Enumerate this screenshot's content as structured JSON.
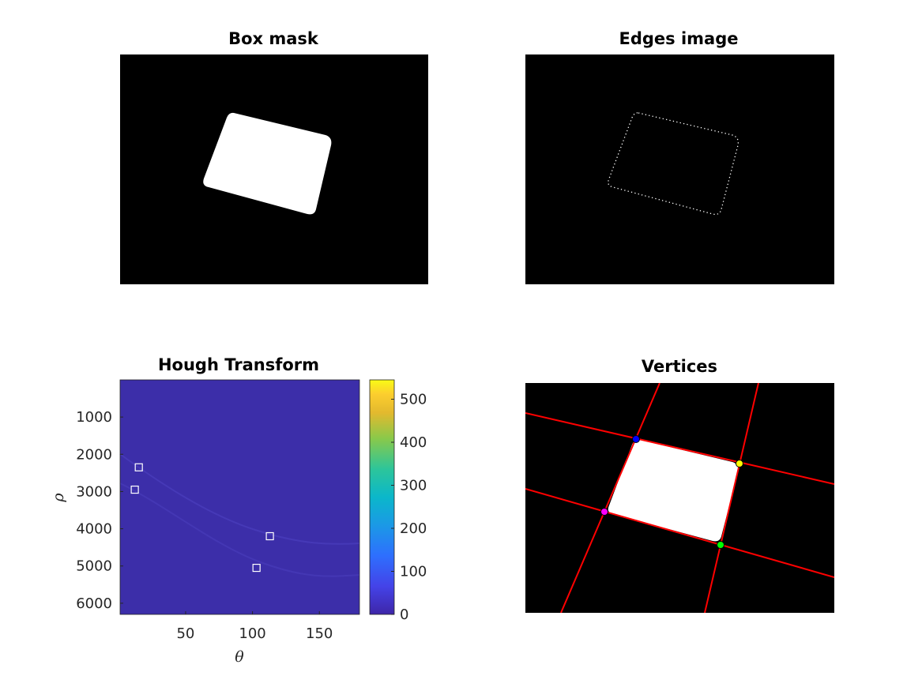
{
  "figure": {
    "panels": {
      "box_mask": {
        "title": "Box mask"
      },
      "edges_image": {
        "title": "Edges image"
      },
      "hough_transform": {
        "title": "Hough Transform"
      },
      "vertices": {
        "title": "Vertices"
      }
    }
  },
  "chart_data": [
    {
      "type": "image",
      "title": "Box mask",
      "description_colors": {
        "background": "#000000",
        "shape": "#ffffff"
      }
    },
    {
      "type": "image",
      "title": "Edges image",
      "description_colors": {
        "background": "#000000",
        "edges": "#ffffff"
      }
    },
    {
      "type": "heatmap",
      "title": "Hough Transform",
      "xlabel": "θ",
      "ylabel": "ρ",
      "xlim": [
        1,
        180
      ],
      "ylim": [
        6300,
        1
      ],
      "y_reversed": true,
      "xticks": [
        50,
        100,
        150
      ],
      "yticks": [
        1000,
        2000,
        3000,
        4000,
        5000,
        6000
      ],
      "colorbar": {
        "ticks": [
          0,
          100,
          200,
          300,
          400,
          500
        ],
        "lim": [
          0,
          545
        ],
        "colormap": "parula"
      },
      "peaks": [
        {
          "theta": 15,
          "rho": 2350
        },
        {
          "theta": 12,
          "rho": 2950
        },
        {
          "theta": 113,
          "rho": 4200
        },
        {
          "theta": 103,
          "rho": 5050
        }
      ],
      "colors": {
        "background": "#3c2ea9",
        "peak_marker": "#ffffff"
      }
    },
    {
      "type": "image",
      "title": "Vertices",
      "vertices": [
        {
          "color": "#0000ff"
        },
        {
          "color": "#ffff00"
        },
        {
          "color": "#00ff00"
        },
        {
          "color": "#ff00ff"
        }
      ],
      "colors": {
        "lines": "#ff0000",
        "background": "#000000",
        "shape": "#ffffff"
      }
    }
  ]
}
